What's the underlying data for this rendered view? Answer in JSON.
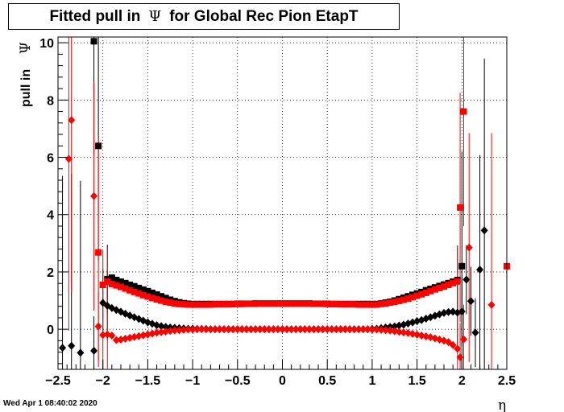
{
  "chart_data": {
    "type": "scatter",
    "title_prefix": "Fitted pull in",
    "title_symbol": "Ψ",
    "title_suffix": "for Global Rec Pion EtapT",
    "xlabel": "η",
    "ylabel_text": "pull in",
    "ylabel_symbol": "Ψ",
    "xlim": [
      -2.5,
      2.5
    ],
    "ylim": [
      -1.4,
      10.2
    ],
    "grid": true,
    "x_ticks": [
      {
        "v": -2.5,
        "label": "−2.5"
      },
      {
        "v": -2,
        "label": "−2"
      },
      {
        "v": -1.5,
        "label": "−1.5"
      },
      {
        "v": -1,
        "label": "−1"
      },
      {
        "v": -0.5,
        "label": "−0.5"
      },
      {
        "v": 0,
        "label": "0"
      },
      {
        "v": 0.5,
        "label": "0.5"
      },
      {
        "v": 1,
        "label": "1"
      },
      {
        "v": 1.5,
        "label": "1.5"
      },
      {
        "v": 2,
        "label": "2"
      },
      {
        "v": 2.5,
        "label": "2.5"
      }
    ],
    "y_ticks": [
      {
        "v": 0,
        "label": "0"
      },
      {
        "v": 2,
        "label": "2"
      },
      {
        "v": 4,
        "label": "4"
      },
      {
        "v": 6,
        "label": "6"
      },
      {
        "v": 8,
        "label": "8"
      },
      {
        "v": 10,
        "label": "10"
      }
    ],
    "colors": {
      "black": "#000000",
      "red": "#ff0000"
    },
    "series": [
      {
        "color": "#000000",
        "marker": "square",
        "x": [
          -2.1,
          -2.05,
          -1.95,
          -1.9,
          -1.85,
          -1.8,
          -1.75,
          -1.7,
          -1.65,
          -1.6,
          -1.55,
          -1.5,
          -1.45,
          -1.4,
          -1.35,
          -1.3,
          -1.25,
          -1.2,
          -1.15,
          -1.1,
          -1.05,
          -1.0,
          -0.95,
          -0.9,
          -0.85,
          -0.8,
          -0.75,
          -0.7,
          -0.65,
          -0.6,
          -0.55,
          -0.5,
          -0.45,
          -0.4,
          -0.35,
          -0.3,
          -0.25,
          -0.2,
          -0.15,
          -0.1,
          -0.05,
          0.0,
          0.05,
          0.1,
          0.15,
          0.2,
          0.25,
          0.3,
          0.35,
          0.4,
          0.45,
          0.5,
          0.55,
          0.6,
          0.65,
          0.7,
          0.75,
          0.8,
          0.85,
          0.9,
          0.95,
          1.0,
          1.05,
          1.1,
          1.15,
          1.2,
          1.25,
          1.3,
          1.35,
          1.4,
          1.45,
          1.5,
          1.55,
          1.6,
          1.65,
          1.7,
          1.75,
          1.8,
          1.85,
          1.9,
          1.95,
          2.0
        ],
        "y": [
          10.05,
          6.4,
          1.75,
          1.8,
          1.72,
          1.66,
          1.61,
          1.55,
          1.5,
          1.44,
          1.38,
          1.33,
          1.27,
          1.21,
          1.15,
          1.09,
          1.03,
          0.98,
          0.94,
          0.91,
          0.89,
          0.88,
          0.88,
          0.88,
          0.88,
          0.88,
          0.88,
          0.88,
          0.88,
          0.88,
          0.88,
          0.89,
          0.89,
          0.89,
          0.89,
          0.9,
          0.9,
          0.9,
          0.9,
          0.9,
          0.9,
          0.9,
          0.9,
          0.9,
          0.9,
          0.9,
          0.9,
          0.9,
          0.89,
          0.89,
          0.89,
          0.89,
          0.88,
          0.88,
          0.88,
          0.88,
          0.88,
          0.88,
          0.88,
          0.88,
          0.88,
          0.88,
          0.88,
          0.9,
          0.93,
          0.96,
          1.0,
          1.05,
          1.1,
          1.15,
          1.2,
          1.25,
          1.3,
          1.36,
          1.41,
          1.46,
          1.51,
          1.56,
          1.61,
          1.66,
          1.72,
          2.2
        ]
      },
      {
        "color": "#000000",
        "marker": "diamond",
        "x": [
          -2.45,
          -2.35,
          -2.25,
          -2.1,
          -2.0,
          -1.95,
          -1.9,
          -1.85,
          -1.8,
          -1.75,
          -1.7,
          -1.65,
          -1.6,
          -1.55,
          -1.5,
          -1.45,
          -1.4,
          -1.35,
          -1.3,
          -1.25,
          -1.2,
          -1.15,
          -1.1,
          -1.05,
          -1.0,
          -0.95,
          -0.9,
          -0.85,
          -0.8,
          -0.75,
          -0.7,
          -0.65,
          -0.6,
          -0.55,
          -0.5,
          -0.45,
          -0.4,
          -0.35,
          -0.3,
          -0.25,
          -0.2,
          -0.15,
          -0.1,
          -0.05,
          0.0,
          0.05,
          0.1,
          0.15,
          0.2,
          0.25,
          0.3,
          0.35,
          0.4,
          0.45,
          0.5,
          0.55,
          0.6,
          0.65,
          0.7,
          0.75,
          0.8,
          0.85,
          0.9,
          0.95,
          1.0,
          1.05,
          1.1,
          1.15,
          1.2,
          1.25,
          1.3,
          1.35,
          1.4,
          1.45,
          1.5,
          1.55,
          1.6,
          1.65,
          1.7,
          1.75,
          1.8,
          1.85,
          1.9,
          1.95,
          2.0,
          2.05,
          2.1,
          2.15,
          2.2,
          2.25
        ],
        "y": [
          -0.65,
          -0.58,
          -0.82,
          -0.75,
          0.92,
          0.82,
          0.74,
          0.67,
          0.61,
          0.54,
          0.48,
          0.42,
          0.36,
          0.3,
          0.24,
          0.19,
          0.14,
          0.11,
          0.08,
          0.06,
          0.05,
          0.04,
          0.03,
          0.02,
          0.02,
          0.01,
          0.01,
          0.01,
          0.0,
          0.0,
          0.0,
          0.0,
          0.0,
          0.0,
          0.0,
          0.0,
          0.0,
          0.0,
          0.0,
          0.0,
          0.0,
          0.0,
          0.0,
          0.0,
          0.0,
          0.0,
          0.0,
          0.0,
          0.0,
          0.0,
          0.0,
          0.0,
          0.0,
          0.0,
          0.0,
          0.0,
          0.0,
          0.0,
          0.0,
          0.0,
          0.0,
          0.0,
          0.0,
          0.0,
          0.01,
          0.02,
          0.04,
          0.06,
          0.08,
          0.1,
          0.13,
          0.16,
          0.2,
          0.24,
          0.28,
          0.32,
          0.37,
          0.42,
          0.47,
          0.52,
          0.57,
          0.6,
          0.61,
          0.58,
          0.62,
          1.73,
          0.98,
          -0.12,
          2.08,
          3.45
        ]
      },
      {
        "color": "#ff0000",
        "marker": "square",
        "x": [
          -2.05,
          -2.0,
          -1.95,
          -1.9,
          -1.85,
          -1.8,
          -1.75,
          -1.7,
          -1.65,
          -1.6,
          -1.55,
          -1.5,
          -1.45,
          -1.4,
          -1.35,
          -1.3,
          -1.25,
          -1.2,
          -1.15,
          -1.1,
          -1.05,
          -1.0,
          -0.95,
          -0.9,
          -0.85,
          -0.8,
          -0.75,
          -0.7,
          -0.65,
          -0.6,
          -0.55,
          -0.5,
          -0.45,
          -0.4,
          -0.35,
          -0.3,
          -0.25,
          -0.2,
          -0.15,
          -0.1,
          -0.05,
          0.0,
          0.05,
          0.1,
          0.15,
          0.2,
          0.25,
          0.3,
          0.35,
          0.4,
          0.45,
          0.5,
          0.55,
          0.6,
          0.65,
          0.7,
          0.75,
          0.8,
          0.85,
          0.9,
          0.95,
          1.0,
          1.05,
          1.1,
          1.15,
          1.2,
          1.25,
          1.3,
          1.35,
          1.4,
          1.45,
          1.5,
          1.55,
          1.6,
          1.65,
          1.7,
          1.75,
          1.8,
          1.85,
          1.9,
          1.95,
          1.98,
          2.02,
          2.5
        ],
        "y": [
          2.68,
          1.55,
          1.66,
          1.58,
          1.53,
          1.48,
          1.42,
          1.36,
          1.3,
          1.25,
          1.19,
          1.14,
          1.09,
          1.04,
          1.0,
          0.96,
          0.93,
          0.9,
          0.88,
          0.87,
          0.86,
          0.86,
          0.86,
          0.86,
          0.86,
          0.86,
          0.87,
          0.87,
          0.87,
          0.87,
          0.88,
          0.88,
          0.88,
          0.89,
          0.89,
          0.89,
          0.9,
          0.9,
          0.9,
          0.9,
          0.9,
          0.9,
          0.9,
          0.9,
          0.9,
          0.9,
          0.9,
          0.9,
          0.89,
          0.89,
          0.89,
          0.88,
          0.88,
          0.88,
          0.87,
          0.87,
          0.87,
          0.87,
          0.86,
          0.86,
          0.86,
          0.86,
          0.86,
          0.88,
          0.9,
          0.93,
          0.96,
          0.99,
          1.03,
          1.07,
          1.12,
          1.17,
          1.22,
          1.27,
          1.33,
          1.39,
          1.44,
          1.49,
          1.55,
          1.61,
          1.67,
          4.25,
          7.6,
          2.2
        ]
      },
      {
        "color": "#ff0000",
        "marker": "diamond",
        "x": [
          -2.38,
          -2.35,
          -2.1,
          -2.05,
          -2.0,
          -1.95,
          -1.9,
          -1.85,
          -1.8,
          -1.75,
          -1.7,
          -1.65,
          -1.6,
          -1.55,
          -1.5,
          -1.45,
          -1.4,
          -1.35,
          -1.3,
          -1.25,
          -1.2,
          -1.15,
          -1.1,
          -1.05,
          -1.0,
          -0.95,
          -0.9,
          -0.85,
          -0.8,
          -0.75,
          -0.7,
          -0.65,
          -0.6,
          -0.55,
          -0.5,
          -0.45,
          -0.4,
          -0.35,
          -0.3,
          -0.25,
          -0.2,
          -0.15,
          -0.1,
          -0.05,
          0.0,
          0.05,
          0.1,
          0.15,
          0.2,
          0.25,
          0.3,
          0.35,
          0.4,
          0.45,
          0.5,
          0.55,
          0.6,
          0.65,
          0.7,
          0.75,
          0.8,
          0.85,
          0.9,
          0.95,
          1.0,
          1.05,
          1.1,
          1.15,
          1.2,
          1.25,
          1.3,
          1.35,
          1.4,
          1.45,
          1.5,
          1.55,
          1.6,
          1.65,
          1.7,
          1.75,
          1.8,
          1.85,
          1.9,
          1.95,
          1.98,
          2.02,
          2.08,
          2.33
        ],
        "y": [
          5.95,
          7.3,
          4.65,
          0.1,
          -0.2,
          -0.18,
          -0.22,
          -0.38,
          -0.36,
          -0.33,
          -0.3,
          -0.27,
          -0.24,
          -0.21,
          -0.18,
          -0.15,
          -0.12,
          -0.1,
          -0.08,
          -0.06,
          -0.04,
          -0.03,
          -0.02,
          -0.01,
          -0.01,
          0.0,
          0.0,
          0.0,
          0.0,
          0.0,
          0.0,
          0.0,
          0.0,
          0.0,
          0.0,
          0.0,
          0.0,
          0.0,
          0.0,
          0.0,
          0.0,
          0.0,
          0.0,
          0.0,
          0.0,
          0.0,
          0.0,
          0.0,
          0.0,
          0.0,
          0.0,
          0.0,
          0.0,
          0.0,
          0.0,
          0.0,
          0.0,
          0.0,
          0.0,
          0.0,
          0.0,
          0.0,
          0.0,
          0.0,
          -0.01,
          -0.01,
          -0.02,
          -0.03,
          -0.05,
          -0.07,
          -0.09,
          -0.11,
          -0.13,
          -0.16,
          -0.19,
          -0.22,
          -0.25,
          -0.28,
          -0.32,
          -0.36,
          -0.4,
          -0.45,
          -0.55,
          -0.68,
          -0.98,
          -0.35,
          2.85,
          0.85
        ]
      }
    ]
  },
  "footer": {
    "timestamp": "Wed Apr  1 08:40:02 2020"
  }
}
